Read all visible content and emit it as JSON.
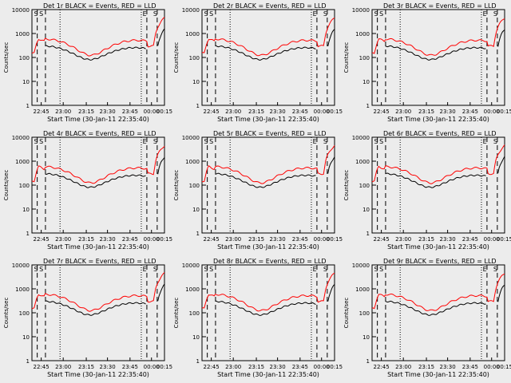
{
  "colors": {
    "events": "#000000",
    "lld": "#ff0000",
    "background": "#ececec"
  },
  "shared": {
    "xlabel": "Start Time (30-Jan-11 22:35:40)",
    "ylabel": "Counts/sec",
    "x_ticks": [
      "22:45",
      "23:00",
      "23:15",
      "23:30",
      "23:45",
      "00:00",
      "00:15"
    ],
    "y_ticks": [
      "1",
      "10",
      "100",
      "1000",
      "10000"
    ],
    "y_log_scale": true,
    "ylim": [
      1,
      10000
    ],
    "marker_labels": [
      "S",
      "S",
      "E",
      "S"
    ]
  },
  "chart_data": [
    {
      "type": "line",
      "title": "Det 1r BLACK = Events, RED = LLD"
    },
    {
      "type": "line",
      "title": "Det 2r BLACK = Events, RED = LLD"
    },
    {
      "type": "line",
      "title": "Det 3r BLACK = Events, RED = LLD"
    },
    {
      "type": "line",
      "title": "Det 4r BLACK = Events, RED = LLD"
    },
    {
      "type": "line",
      "title": "Det 5r BLACK = Events, RED = LLD"
    },
    {
      "type": "line",
      "title": "Det 6r BLACK = Events, RED = LLD"
    },
    {
      "type": "line",
      "title": "Det 7r BLACK = Events, RED = LLD"
    },
    {
      "type": "line",
      "title": "Det 8r BLACK = Events, RED = LLD"
    },
    {
      "type": "line",
      "title": "Det 9r BLACK = Events, RED = LLD"
    }
  ]
}
